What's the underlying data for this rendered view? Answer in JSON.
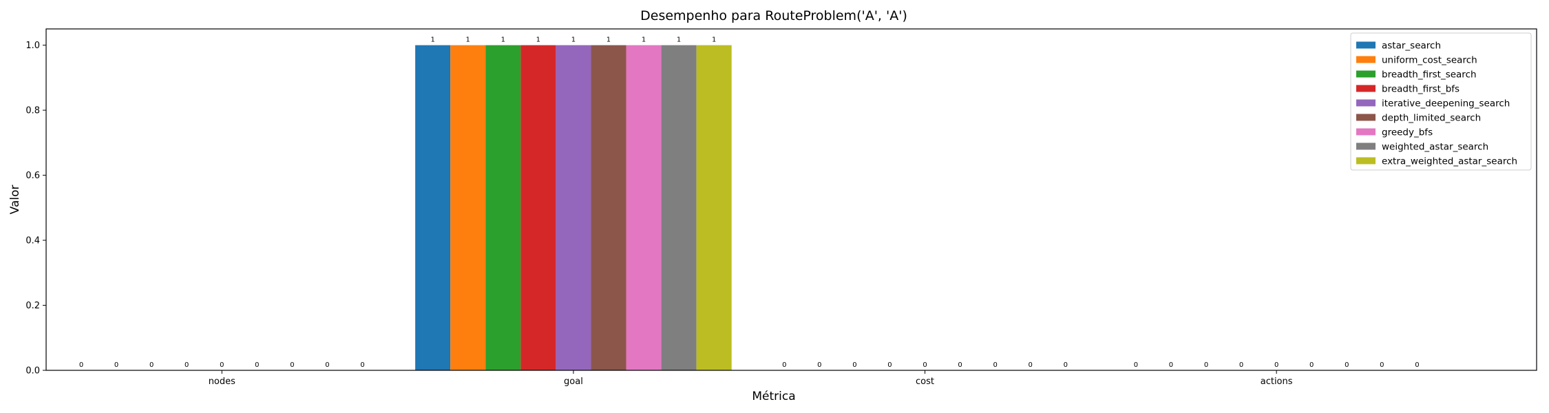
{
  "chart_data": {
    "type": "bar",
    "title": "Desempenho para RouteProblem('A', 'A')",
    "xlabel": "Métrica",
    "ylabel": "Valor",
    "categories": [
      "nodes",
      "goal",
      "cost",
      "actions"
    ],
    "ylim": [
      0,
      1.05
    ],
    "yticks": [
      "0.0",
      "0.2",
      "0.4",
      "0.6",
      "0.8",
      "1.0"
    ],
    "grid": false,
    "legend_position": "top-right",
    "series": [
      {
        "name": "astar_search",
        "color": "#1f77b4",
        "values": [
          0,
          1,
          0,
          0
        ]
      },
      {
        "name": "uniform_cost_search",
        "color": "#ff7f0e",
        "values": [
          0,
          1,
          0,
          0
        ]
      },
      {
        "name": "breadth_first_search",
        "color": "#2ca02c",
        "values": [
          0,
          1,
          0,
          0
        ]
      },
      {
        "name": "breadth_first_bfs",
        "color": "#d62728",
        "values": [
          0,
          1,
          0,
          0
        ]
      },
      {
        "name": "iterative_deepening_search",
        "color": "#9467bd",
        "values": [
          0,
          1,
          0,
          0
        ]
      },
      {
        "name": "depth_limited_search",
        "color": "#8c564b",
        "values": [
          0,
          1,
          0,
          0
        ]
      },
      {
        "name": "greedy_bfs",
        "color": "#e377c2",
        "values": [
          0,
          1,
          0,
          0
        ]
      },
      {
        "name": "weighted_astar_search",
        "color": "#7f7f7f",
        "values": [
          0,
          1,
          0,
          0
        ]
      },
      {
        "name": "extra_weighted_astar_search",
        "color": "#bcbd22",
        "values": [
          0,
          1,
          0,
          0
        ]
      }
    ]
  }
}
